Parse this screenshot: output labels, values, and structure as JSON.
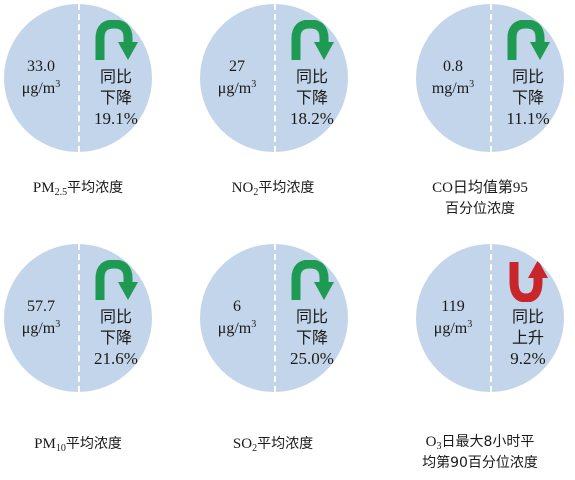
{
  "indicators": [
    {
      "value": "33.0",
      "unit": "μg/m",
      "unit_sup": "3",
      "change_line1": "同比",
      "change_line2": "下降",
      "change_pct": "19.1%",
      "direction": "down",
      "label_pre": "PM",
      "label_sub": "2.5",
      "label_post": "平均浓度",
      "label_line2": ""
    },
    {
      "value": "27",
      "unit": "μg/m",
      "unit_sup": "3",
      "change_line1": "同比",
      "change_line2": "下降",
      "change_pct": "18.2%",
      "direction": "down",
      "label_pre": "NO",
      "label_sub": "2",
      "label_post": "平均浓度",
      "label_line2": ""
    },
    {
      "value": "0.8",
      "unit": "mg/m",
      "unit_sup": "3",
      "change_line1": "同比",
      "change_line2": "下降",
      "change_pct": "11.1%",
      "direction": "down",
      "label_pre": "CO日均值第95",
      "label_sub": "",
      "label_post": "",
      "label_line2": "百分位浓度"
    },
    {
      "value": "57.7",
      "unit": "μg/m",
      "unit_sup": "3",
      "change_line1": "同比",
      "change_line2": "下降",
      "change_pct": "21.6%",
      "direction": "down",
      "label_pre": "PM",
      "label_sub": "10",
      "label_post": "平均浓度",
      "label_line2": ""
    },
    {
      "value": "6",
      "unit": "μg/m",
      "unit_sup": "3",
      "change_line1": "同比",
      "change_line2": "下降",
      "change_pct": "25.0%",
      "direction": "down",
      "label_pre": "SO",
      "label_sub": "2",
      "label_post": "平均浓度",
      "label_line2": ""
    },
    {
      "value": "119",
      "unit": "μg/m",
      "unit_sup": "3",
      "change_line1": "同比",
      "change_line2": "上升",
      "change_pct": "9.2%",
      "direction": "up",
      "label_pre": "O",
      "label_sub": "3",
      "label_post": "日最大8小时平",
      "label_line2": "均第90百分位浓度"
    }
  ],
  "colors": {
    "circle": "#c3d5ea",
    "down_arrow": "#1f9a52",
    "up_arrow": "#c8262b"
  }
}
